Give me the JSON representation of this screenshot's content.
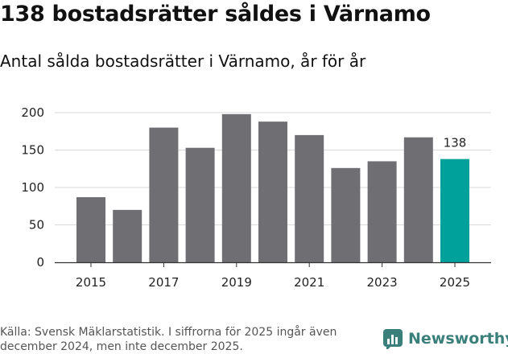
{
  "title": "138 bostadsrätter såldes i Värnamo",
  "subtitle": "Antal sålda bostadsrätter i Värnamo, år för år",
  "source": "Källa: Svensk Mäklarstatistik. I siffrorna för 2025 ingår även december 2024, men inte december 2025.",
  "logo": {
    "text": "Newsworthy",
    "icon": "newsworthy-logo-icon",
    "color": "#3a7f7a"
  },
  "colors": {
    "bar": "#6f6e73",
    "highlight": "#00a19a",
    "grid": "#d9d9d9",
    "axis": "#333333"
  },
  "chart_data": {
    "type": "bar",
    "title": "Antal sålda bostadsrätter i Värnamo, år för år",
    "xlabel": "",
    "ylabel": "",
    "categories": [
      "2015",
      "2016",
      "2017",
      "2018",
      "2019",
      "2020",
      "2021",
      "2022",
      "2023",
      "2024",
      "2025"
    ],
    "values": [
      87,
      70,
      180,
      153,
      198,
      188,
      170,
      126,
      135,
      167,
      138
    ],
    "x_tick_labels": [
      "2015",
      "2017",
      "2019",
      "2021",
      "2023",
      "2025"
    ],
    "y_ticks": [
      0,
      50,
      100,
      150,
      200
    ],
    "ylim": [
      0,
      200
    ],
    "grid": true,
    "highlight_category": "2025",
    "data_labels": [
      {
        "category": "2025",
        "text": "138"
      }
    ]
  }
}
